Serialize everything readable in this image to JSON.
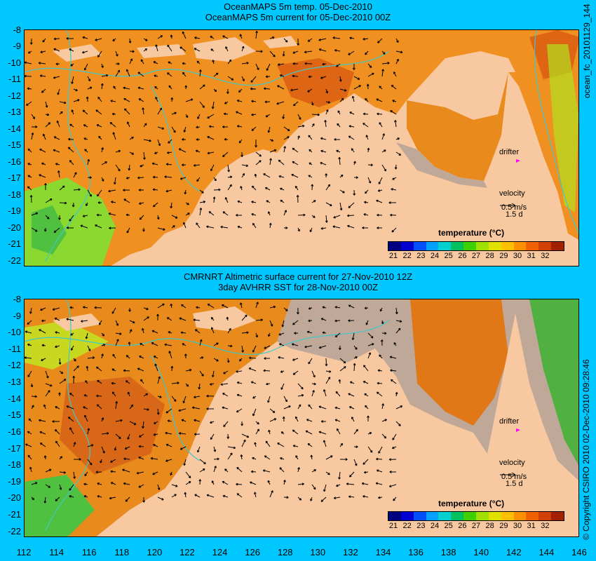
{
  "top_panel": {
    "title1": "OceanMAPS 5m temp. 05-Dec-2010",
    "title2": "OceanMAPS 5m current for 05-Dec-2010 00Z",
    "side_label": "ocean_fc_20101129_144",
    "drifter_label": "drifter",
    "velocity_label": "velocity",
    "velocity_value": "0.5 m/s",
    "velocity_days": "1.5 d",
    "legend_title": "temperature (°C)"
  },
  "bottom_panel": {
    "title1": "CMRNRT Altimetric surface current for 27-Nov-2010 12Z",
    "title2": "3day AVHRR SST for 28-Nov-2010 00Z",
    "side_label": "© Copyright CSIRO 2010   02-Dec-2010 09:28:46",
    "drifter_label": "drifter",
    "velocity_label": "velocity",
    "velocity_value": "0.5 m/s",
    "velocity_days": "1.5 d",
    "legend_title": "temperature (°C)"
  },
  "y_ticks": [
    "-8",
    "-9",
    "-10",
    "-11",
    "-12",
    "-13",
    "-14",
    "-15",
    "-16",
    "-17",
    "-18",
    "-19",
    "-20",
    "-21",
    "-22"
  ],
  "x_ticks": [
    "112",
    "114",
    "116",
    "118",
    "120",
    "122",
    "124",
    "126",
    "128",
    "130",
    "132",
    "134",
    "136",
    "138",
    "140",
    "142",
    "144",
    "146"
  ],
  "colorbar_ticks": [
    "21",
    "22",
    "23",
    "24",
    "25",
    "26",
    "27",
    "28",
    "29",
    "30",
    "31",
    "32"
  ],
  "colors": {
    "background": "#00c8ff",
    "land": "#f0b090",
    "missing": "#c0a898",
    "contour": "#40c8c8",
    "drifter": "#ff00ff",
    "colorbar": [
      "#000080",
      "#0000d0",
      "#0050ff",
      "#00a0ff",
      "#00d0d0",
      "#00c060",
      "#40d000",
      "#a0e000",
      "#e0e000",
      "#ffc000",
      "#ff9000",
      "#f06000",
      "#d04000",
      "#a02000"
    ]
  }
}
